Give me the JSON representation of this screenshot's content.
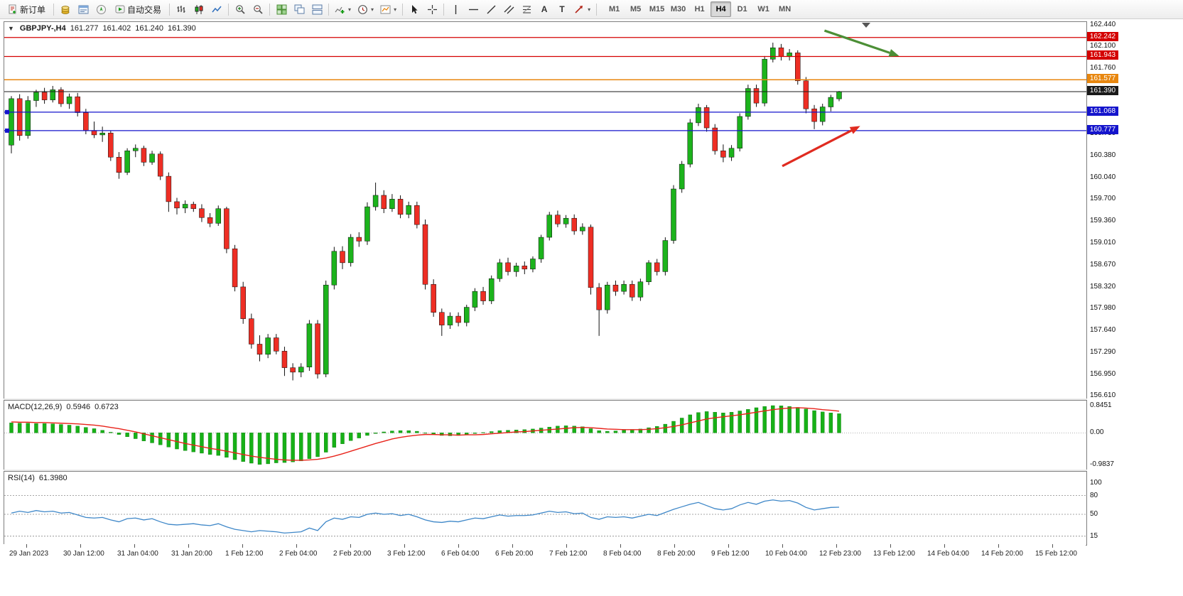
{
  "toolbar": {
    "new_order_label": "新订单",
    "autotrading_label": "自动交易",
    "timeframes": [
      "M1",
      "M5",
      "M15",
      "M30",
      "H1",
      "H4",
      "D1",
      "W1",
      "MN"
    ],
    "active_timeframe": "H4",
    "notification_count": "1"
  },
  "icons": {
    "text_tool": "A",
    "label_tool": "T",
    "dropdown": "▾",
    "collapse_arrow": "▼"
  },
  "main_chart": {
    "symbol": "GBPJPY-,H4",
    "open": "161.277",
    "high": "161.402",
    "low": "161.240",
    "close": "161.390"
  },
  "macd_label": {
    "name": "MACD(12,26,9)",
    "main_value": "0.5946",
    "signal_value": "0.6723"
  },
  "rsi_label": {
    "name": "RSI(14)",
    "value": "61.3980"
  },
  "colors": {
    "bull": "#1cb31c",
    "bear": "#ee2e24",
    "macd_histogram": "#17b117",
    "macd_signal": "#e8231a",
    "rsi_line": "#3e87c8",
    "level_red": "#d40000",
    "level_orange": "#e8870f",
    "level_blue": "#1414cc",
    "bid_black": "#1a1a1a"
  },
  "chart_data": [
    {
      "type": "candlestick",
      "title": "GBPJPY-,H4",
      "ylim": [
        156.61,
        162.44
      ],
      "y_ticks": [
        "162.440",
        "162.100",
        "161.760",
        "161.420",
        "161.080",
        "160.730",
        "160.380",
        "160.040",
        "159.700",
        "159.360",
        "159.010",
        "158.670",
        "158.320",
        "157.980",
        "157.640",
        "157.290",
        "156.950",
        "156.610"
      ],
      "x_labels": [
        "29 Jan 2023",
        "30 Jan 12:00",
        "31 Jan 04:00",
        "31 Jan 20:00",
        "1 Feb 12:00",
        "2 Feb 04:00",
        "2 Feb 20:00",
        "3 Feb 12:00",
        "6 Feb 04:00",
        "6 Feb 20:00",
        "7 Feb 12:00",
        "8 Feb 04:00",
        "8 Feb 20:00",
        "9 Feb 12:00",
        "10 Feb 04:00",
        "12 Feb 23:00",
        "13 Feb 12:00",
        "14 Feb 04:00",
        "14 Feb 20:00",
        "15 Feb 12:00"
      ],
      "h_lines": [
        {
          "price": 162.242,
          "label": "162.242",
          "color": "#d40000",
          "width": 1.3
        },
        {
          "price": 161.943,
          "label": "161.943",
          "color": "#d40000",
          "width": 1.3
        },
        {
          "price": 161.577,
          "label": "161.577",
          "color": "#e8870f",
          "width": 1.5
        },
        {
          "price": 161.39,
          "label": "161.390",
          "color": "#1a1a1a",
          "width": 1
        },
        {
          "price": 161.068,
          "label": "161.068",
          "color": "#1414cc",
          "width": 1.3,
          "handles": true
        },
        {
          "price": 160.777,
          "label": "160.777",
          "color": "#1414cc",
          "width": 1.3,
          "handles": true
        }
      ],
      "arrows": [
        {
          "name": "green-arrow",
          "x1": 0.758,
          "price1": 162.35,
          "x2": 0.827,
          "price2": 161.95,
          "color": "#4c8f36"
        },
        {
          "name": "red-arrow",
          "x1": 0.719,
          "price1": 160.22,
          "x2": 0.791,
          "price2": 160.85,
          "color": "#e02b20"
        }
      ],
      "candles": [
        [
          160.55,
          161.32,
          160.42,
          161.28
        ],
        [
          161.28,
          161.35,
          160.62,
          160.7
        ],
        [
          160.7,
          161.32,
          160.65,
          161.25
        ],
        [
          161.25,
          161.42,
          161.15,
          161.38
        ],
        [
          161.38,
          161.45,
          161.2,
          161.26
        ],
        [
          161.26,
          161.48,
          161.22,
          161.42
        ],
        [
          161.42,
          161.46,
          161.15,
          161.2
        ],
        [
          161.2,
          161.36,
          161.12,
          161.31
        ],
        [
          161.31,
          161.37,
          161.0,
          161.06
        ],
        [
          161.06,
          161.12,
          160.72,
          160.78
        ],
        [
          160.78,
          160.92,
          160.66,
          160.71
        ],
        [
          160.71,
          160.84,
          160.6,
          160.74
        ],
        [
          160.74,
          160.78,
          160.3,
          160.36
        ],
        [
          160.36,
          160.44,
          160.02,
          160.12
        ],
        [
          160.12,
          160.5,
          160.08,
          160.46
        ],
        [
          160.46,
          160.56,
          160.36,
          160.5
        ],
        [
          160.5,
          160.54,
          160.22,
          160.28
        ],
        [
          160.28,
          160.46,
          160.24,
          160.41
        ],
        [
          160.41,
          160.45,
          160.0,
          160.06
        ],
        [
          160.06,
          160.12,
          159.5,
          159.66
        ],
        [
          159.66,
          159.72,
          159.46,
          159.56
        ],
        [
          159.56,
          159.68,
          159.48,
          159.62
        ],
        [
          159.62,
          159.66,
          159.5,
          159.55
        ],
        [
          159.55,
          159.62,
          159.34,
          159.41
        ],
        [
          159.41,
          159.48,
          159.26,
          159.32
        ],
        [
          159.32,
          159.6,
          159.28,
          159.55
        ],
        [
          159.55,
          159.58,
          158.85,
          158.92
        ],
        [
          158.92,
          158.98,
          158.25,
          158.32
        ],
        [
          158.32,
          158.4,
          157.74,
          157.82
        ],
        [
          157.82,
          157.9,
          157.35,
          157.42
        ],
        [
          157.42,
          157.56,
          157.15,
          157.26
        ],
        [
          157.26,
          157.58,
          157.2,
          157.52
        ],
        [
          157.52,
          157.58,
          157.26,
          157.31
        ],
        [
          157.31,
          157.38,
          156.92,
          157.05
        ],
        [
          157.05,
          157.12,
          156.85,
          156.98
        ],
        [
          156.98,
          157.12,
          156.9,
          157.06
        ],
        [
          157.06,
          157.8,
          157.0,
          157.74
        ],
        [
          157.74,
          157.8,
          156.88,
          156.95
        ],
        [
          156.95,
          158.42,
          156.9,
          158.35
        ],
        [
          158.35,
          158.95,
          158.28,
          158.88
        ],
        [
          158.88,
          158.96,
          158.6,
          158.7
        ],
        [
          158.7,
          159.15,
          158.64,
          159.1
        ],
        [
          159.1,
          159.18,
          158.95,
          159.04
        ],
        [
          159.04,
          159.65,
          158.98,
          159.58
        ],
        [
          159.58,
          159.96,
          159.52,
          159.76
        ],
        [
          159.76,
          159.84,
          159.48,
          159.55
        ],
        [
          159.55,
          159.78,
          159.5,
          159.7
        ],
        [
          159.7,
          159.76,
          159.4,
          159.46
        ],
        [
          159.46,
          159.66,
          159.4,
          159.6
        ],
        [
          159.6,
          159.66,
          159.24,
          159.3
        ],
        [
          159.3,
          159.38,
          158.28,
          158.36
        ],
        [
          158.36,
          158.44,
          157.85,
          157.92
        ],
        [
          157.92,
          157.98,
          157.55,
          157.72
        ],
        [
          157.72,
          157.92,
          157.66,
          157.86
        ],
        [
          157.86,
          157.92,
          157.7,
          157.76
        ],
        [
          157.76,
          158.04,
          157.7,
          158.0
        ],
        [
          158.0,
          158.3,
          157.94,
          158.25
        ],
        [
          158.25,
          158.32,
          158.04,
          158.1
        ],
        [
          158.1,
          158.5,
          158.05,
          158.45
        ],
        [
          158.45,
          158.76,
          158.4,
          158.7
        ],
        [
          158.7,
          158.78,
          158.5,
          158.56
        ],
        [
          158.56,
          158.7,
          158.48,
          158.65
        ],
        [
          158.65,
          158.72,
          158.52,
          158.6
        ],
        [
          158.6,
          158.8,
          158.55,
          158.76
        ],
        [
          158.76,
          159.14,
          158.7,
          159.1
        ],
        [
          159.1,
          159.5,
          159.05,
          159.45
        ],
        [
          159.45,
          159.52,
          159.26,
          159.31
        ],
        [
          159.31,
          159.45,
          159.25,
          159.4
        ],
        [
          159.4,
          159.46,
          159.14,
          159.2
        ],
        [
          159.2,
          159.32,
          159.14,
          159.26
        ],
        [
          159.26,
          159.3,
          158.2,
          158.31
        ],
        [
          158.31,
          158.38,
          157.55,
          157.96
        ],
        [
          157.96,
          158.4,
          157.9,
          158.35
        ],
        [
          158.35,
          158.42,
          158.18,
          158.25
        ],
        [
          158.25,
          158.42,
          158.2,
          158.36
        ],
        [
          158.36,
          158.42,
          158.1,
          158.16
        ],
        [
          158.16,
          158.45,
          158.1,
          158.4
        ],
        [
          158.4,
          158.74,
          158.35,
          158.7
        ],
        [
          158.7,
          158.76,
          158.5,
          158.56
        ],
        [
          158.56,
          159.1,
          158.5,
          159.05
        ],
        [
          159.05,
          159.92,
          159.0,
          159.86
        ],
        [
          159.86,
          160.3,
          159.8,
          160.25
        ],
        [
          160.25,
          160.96,
          160.2,
          160.9
        ],
        [
          160.9,
          161.2,
          160.85,
          161.14
        ],
        [
          161.14,
          161.18,
          160.76,
          160.82
        ],
        [
          160.82,
          160.88,
          160.4,
          160.46
        ],
        [
          160.46,
          160.56,
          160.28,
          160.36
        ],
        [
          160.36,
          160.55,
          160.3,
          160.5
        ],
        [
          160.5,
          161.05,
          160.45,
          161.0
        ],
        [
          161.0,
          161.5,
          160.95,
          161.44
        ],
        [
          161.44,
          161.5,
          161.15,
          161.21
        ],
        [
          161.21,
          161.95,
          161.16,
          161.9
        ],
        [
          161.9,
          162.16,
          161.85,
          162.08
        ],
        [
          162.08,
          162.14,
          161.88,
          161.94
        ],
        [
          161.94,
          162.06,
          161.88,
          162.0
        ],
        [
          162.0,
          162.04,
          161.5,
          161.56
        ],
        [
          161.56,
          161.62,
          161.05,
          161.12
        ],
        [
          161.12,
          161.18,
          160.8,
          160.92
        ],
        [
          160.92,
          161.2,
          160.86,
          161.15
        ],
        [
          161.15,
          161.34,
          161.08,
          161.3
        ],
        [
          161.277,
          161.402,
          161.24,
          161.39
        ]
      ]
    },
    {
      "type": "bar",
      "title": "MACD(12,26,9)",
      "ylim": [
        -0.9837,
        0.8451
      ],
      "y_tick_labels": [
        "0.8451",
        "0.00",
        "-0.9837"
      ],
      "histogram": [
        0.31,
        0.3,
        0.3,
        0.29,
        0.29,
        0.28,
        0.26,
        0.24,
        0.21,
        0.17,
        0.13,
        0.08,
        0.02,
        -0.05,
        -0.12,
        -0.18,
        -0.25,
        -0.31,
        -0.37,
        -0.44,
        -0.5,
        -0.55,
        -0.59,
        -0.63,
        -0.67,
        -0.7,
        -0.76,
        -0.83,
        -0.89,
        -0.94,
        -0.98,
        -0.96,
        -0.93,
        -0.92,
        -0.9,
        -0.87,
        -0.8,
        -0.74,
        -0.6,
        -0.45,
        -0.34,
        -0.24,
        -0.16,
        -0.08,
        -0.02,
        0.03,
        0.06,
        0.07,
        0.07,
        0.05,
        0.0,
        -0.05,
        -0.08,
        -0.09,
        -0.08,
        -0.05,
        -0.02,
        0.01,
        0.04,
        0.07,
        0.08,
        0.09,
        0.1,
        0.12,
        0.15,
        0.18,
        0.21,
        0.22,
        0.21,
        0.19,
        0.13,
        0.07,
        0.05,
        0.06,
        0.08,
        0.09,
        0.12,
        0.16,
        0.2,
        0.27,
        0.36,
        0.46,
        0.56,
        0.63,
        0.66,
        0.64,
        0.62,
        0.64,
        0.68,
        0.73,
        0.78,
        0.82,
        0.845,
        0.84,
        0.82,
        0.79,
        0.74,
        0.69,
        0.65,
        0.62,
        0.5946
      ],
      "signal": [
        0.34,
        0.33,
        0.33,
        0.32,
        0.32,
        0.31,
        0.3,
        0.29,
        0.28,
        0.26,
        0.24,
        0.21,
        0.17,
        0.13,
        0.08,
        0.03,
        -0.03,
        -0.09,
        -0.15,
        -0.21,
        -0.27,
        -0.33,
        -0.38,
        -0.43,
        -0.48,
        -0.52,
        -0.57,
        -0.62,
        -0.67,
        -0.72,
        -0.76,
        -0.79,
        -0.82,
        -0.84,
        -0.85,
        -0.85,
        -0.84,
        -0.82,
        -0.78,
        -0.72,
        -0.65,
        -0.57,
        -0.49,
        -0.41,
        -0.33,
        -0.26,
        -0.19,
        -0.14,
        -0.1,
        -0.07,
        -0.05,
        -0.05,
        -0.06,
        -0.06,
        -0.07,
        -0.06,
        -0.06,
        -0.05,
        -0.03,
        -0.01,
        0.01,
        0.03,
        0.04,
        0.06,
        0.08,
        0.1,
        0.12,
        0.14,
        0.16,
        0.17,
        0.16,
        0.14,
        0.12,
        0.11,
        0.1,
        0.1,
        0.1,
        0.11,
        0.13,
        0.16,
        0.2,
        0.25,
        0.31,
        0.37,
        0.43,
        0.47,
        0.5,
        0.53,
        0.56,
        0.6,
        0.64,
        0.68,
        0.72,
        0.75,
        0.77,
        0.78,
        0.77,
        0.75,
        0.72,
        0.7,
        0.6723
      ]
    },
    {
      "type": "line",
      "title": "RSI(14)",
      "current_value": 61.398,
      "y_tick_labels": [
        "100",
        "80",
        "50",
        "15"
      ],
      "levels": [
        80,
        50,
        15
      ],
      "values": [
        52,
        55,
        53,
        56,
        54,
        55,
        52,
        53,
        49,
        45,
        44,
        45,
        41,
        38,
        43,
        44,
        41,
        43,
        38,
        34,
        33,
        34,
        35,
        33,
        32,
        35,
        30,
        26,
        24,
        22,
        24,
        23,
        22,
        20,
        21,
        22,
        28,
        24,
        38,
        44,
        42,
        46,
        45,
        50,
        52,
        50,
        51,
        48,
        50,
        46,
        41,
        38,
        37,
        39,
        38,
        41,
        44,
        43,
        46,
        49,
        47,
        48,
        48,
        49,
        52,
        55,
        53,
        54,
        51,
        52,
        45,
        42,
        46,
        45,
        46,
        44,
        47,
        50,
        48,
        53,
        58,
        62,
        66,
        69,
        64,
        59,
        57,
        59,
        65,
        69,
        66,
        71,
        73,
        71,
        72,
        68,
        61,
        57,
        59,
        61,
        61.398
      ]
    }
  ]
}
